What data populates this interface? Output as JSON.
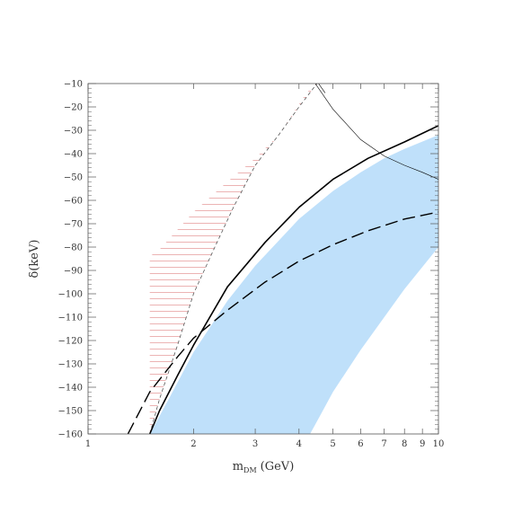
{
  "chart_data": {
    "type": "line",
    "title": "",
    "xlabel": "m",
    "xlabel_sub": "DM",
    "xlabel_unit": "(GeV)",
    "ylabel": "δ(keV)",
    "xscale": "log",
    "xlim": [
      1,
      10
    ],
    "ylim": [
      -160,
      -10
    ],
    "x_ticks": [
      1,
      2,
      3,
      4,
      5,
      6,
      7,
      8,
      9,
      10
    ],
    "x_tick_labels": [
      "1",
      "2",
      "3",
      "4",
      "5",
      "6",
      "7",
      "8",
      "9",
      "10"
    ],
    "y_ticks": [
      -10,
      -20,
      -30,
      -40,
      -50,
      -60,
      -70,
      -80,
      -90,
      -100,
      -110,
      -120,
      -130,
      -140,
      -150,
      -160
    ],
    "y_tick_labels": [
      "−10",
      "−20",
      "−30",
      "−40",
      "−50",
      "−60",
      "−70",
      "−80",
      "−90",
      "−100",
      "−110",
      "−120",
      "−130",
      "−140",
      "−150",
      "−160"
    ],
    "colors": {
      "band": "#bfe0fa",
      "hatch": "#e8a0a0",
      "curve": "#000000",
      "axes": "#555555"
    },
    "series": [
      {
        "kind": "band",
        "upper": {
          "x": [
            1.5,
            1.7,
            2.0,
            2.5,
            3.0,
            4.0,
            5.0,
            6.0,
            7.0,
            8.0,
            10.0
          ],
          "y": [
            -160,
            -145,
            -125,
            -103,
            -88,
            -68,
            -56,
            -48,
            -42,
            -38,
            -32
          ]
        },
        "lower": {
          "x": [
            10.0,
            8.0,
            6.0,
            5.0,
            4.6,
            4.3
          ],
          "y": [
            -80,
            -98,
            -124,
            -142,
            -152,
            -160
          ]
        }
      },
      {
        "kind": "hatched_region",
        "left": {
          "x": [
            1.5,
            1.6,
            1.8,
            2.0,
            2.3,
            2.6,
            3.0,
            3.5,
            4.0,
            4.5
          ],
          "y": [
            -160,
            -145,
            -122,
            -100,
            -80,
            -63,
            -45,
            -32,
            -20,
            -10
          ]
        },
        "right": {
          "x": [
            4.5,
            4.2,
            3.5,
            3.0,
            2.5,
            2.0,
            1.6,
            1.5
          ],
          "y": [
            -10,
            -14,
            -32,
            -42,
            -52,
            -65,
            -81,
            -84
          ]
        },
        "lower_bound": {
          "x": [
            1.5,
            1.7,
            2.0,
            2.5,
            3.2,
            4.0
          ],
          "y": [
            -160,
            -150,
            -122,
            -97,
            -78,
            -63
          ]
        }
      },
      {
        "kind": "solid",
        "x": [
          1.5,
          1.6,
          1.8,
          2.0,
          2.5,
          3.2,
          4.0,
          5.0,
          6.3,
          8.0,
          10.0
        ],
        "y": [
          -160,
          -150,
          -135,
          -122,
          -97,
          -78,
          -63,
          -51,
          -42,
          -35,
          -28
        ]
      },
      {
        "kind": "dashed",
        "x": [
          1.3,
          1.5,
          1.8,
          2.0,
          2.5,
          3.2,
          4.0,
          5.0,
          6.3,
          8.0,
          10.0
        ],
        "y": [
          -160,
          -142,
          -127,
          -119,
          -107,
          -95,
          -86,
          -79,
          -73,
          -68,
          -65
        ]
      },
      {
        "kind": "thin",
        "x": [
          4.45,
          4.75
        ],
        "y": [
          -8,
          -14
        ]
      },
      {
        "kind": "thin",
        "x": [
          4.45,
          5.0,
          6.0,
          7.0,
          8.0,
          9.0,
          10.0
        ],
        "y": [
          -10,
          -21,
          -34,
          -41,
          -45,
          -48,
          -51
        ]
      }
    ]
  }
}
